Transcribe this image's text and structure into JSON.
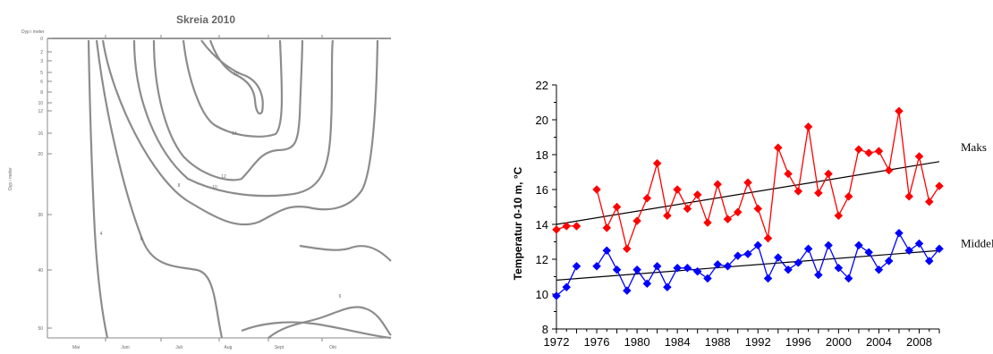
{
  "contour_chart": {
    "title": "Skreia 2010",
    "y_axis_label_top": "Dyp i meter",
    "y_axis_label_side": "Dyp i meter",
    "depth_ticks": [
      "0",
      "2",
      "3",
      "5",
      "6",
      "8",
      "10",
      "12",
      "16",
      "20",
      "30",
      "40",
      "50"
    ],
    "month_ticks": [
      "Mai",
      "Juni",
      "Juli",
      "Aug",
      "Sept",
      "Okt"
    ],
    "contour_labels": [
      "16",
      "14",
      "12",
      "10",
      "8",
      "6",
      "4",
      "6"
    ]
  },
  "chart_data": {
    "type": "line",
    "title": "",
    "xlabel": "",
    "ylabel": "Temperatur 0-10 m, °C",
    "xlim": [
      1972,
      2010
    ],
    "ylim": [
      8,
      22
    ],
    "x_ticks": [
      "1972",
      "1976",
      "1980",
      "1984",
      "1988",
      "1992",
      "1996",
      "2000",
      "2004",
      "2008"
    ],
    "y_ticks": [
      "8",
      "10",
      "12",
      "14",
      "16",
      "18",
      "20",
      "22"
    ],
    "grid": false,
    "series": [
      {
        "name": "Maks",
        "color": "#ff0000",
        "marker": "diamond",
        "x": [
          1972,
          1973,
          1974,
          1976,
          1977,
          1978,
          1979,
          1980,
          1981,
          1982,
          1983,
          1984,
          1985,
          1986,
          1987,
          1988,
          1989,
          1990,
          1991,
          1992,
          1993,
          1994,
          1995,
          1996,
          1997,
          1998,
          1999,
          2000,
          2001,
          2002,
          2003,
          2004,
          2005,
          2006,
          2007,
          2008,
          2009,
          2010
        ],
        "y": [
          13.7,
          13.9,
          13.9,
          16.0,
          13.8,
          15.0,
          12.6,
          14.2,
          15.5,
          17.5,
          14.5,
          16.0,
          14.9,
          15.7,
          14.1,
          16.3,
          14.3,
          14.7,
          16.4,
          14.9,
          13.2,
          18.4,
          16.9,
          15.9,
          19.6,
          15.8,
          16.9,
          14.5,
          15.6,
          18.3,
          18.1,
          18.2,
          17.1,
          20.5,
          15.6,
          17.9,
          15.3,
          16.2
        ],
        "trend": [
          14.0,
          17.6
        ]
      },
      {
        "name": "Middel",
        "color": "#0000ff",
        "marker": "diamond",
        "x": [
          1972,
          1973,
          1974,
          1976,
          1977,
          1978,
          1979,
          1980,
          1981,
          1982,
          1983,
          1984,
          1985,
          1986,
          1987,
          1988,
          1989,
          1990,
          1991,
          1992,
          1993,
          1994,
          1995,
          1996,
          1997,
          1998,
          1999,
          2000,
          2001,
          2002,
          2003,
          2004,
          2005,
          2006,
          2007,
          2008,
          2009,
          2010
        ],
        "y": [
          9.9,
          10.4,
          11.6,
          11.6,
          12.5,
          11.4,
          10.2,
          11.4,
          10.6,
          11.6,
          10.4,
          11.5,
          11.5,
          11.3,
          10.9,
          11.7,
          11.6,
          12.2,
          12.3,
          12.8,
          10.9,
          12.1,
          11.4,
          11.8,
          12.6,
          11.1,
          12.8,
          11.5,
          10.9,
          12.8,
          12.4,
          11.4,
          11.9,
          13.5,
          12.5,
          12.9,
          11.9,
          12.6
        ],
        "trend": [
          10.8,
          12.5
        ]
      }
    ]
  }
}
